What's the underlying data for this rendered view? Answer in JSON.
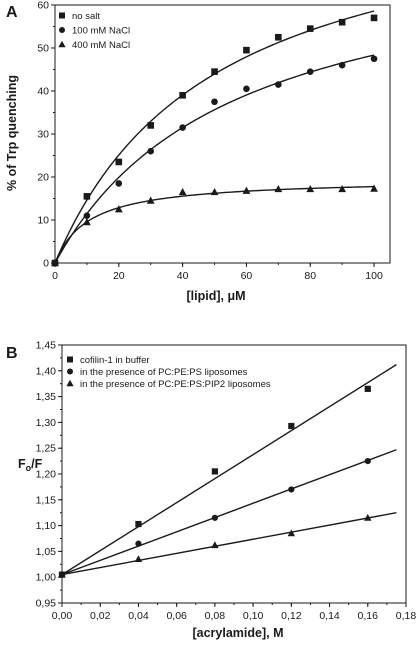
{
  "chart_data": [
    {
      "type": "scatter",
      "panel_label": "A",
      "xlabel": "[lipid], μM",
      "ylabel": "% of Trp quenching",
      "xlim": [
        0,
        105
      ],
      "ylim": [
        0,
        60
      ],
      "x_ticks": [
        "0",
        "20",
        "40",
        "60",
        "80",
        "100"
      ],
      "y_ticks": [
        "0",
        "10",
        "20",
        "30",
        "40",
        "50",
        "60"
      ],
      "legend_position": "top-left",
      "series": [
        {
          "name": "no salt",
          "marker": "square",
          "x": [
            0,
            10,
            20,
            30,
            40,
            50,
            60,
            70,
            80,
            90,
            100
          ],
          "y": [
            0,
            15.5,
            23.5,
            32,
            39,
            44.5,
            49.5,
            52.5,
            54.5,
            56,
            57
          ],
          "fit": "saturating"
        },
        {
          "name": "100 mM NaCl",
          "marker": "circle",
          "x": [
            0,
            10,
            20,
            30,
            40,
            50,
            60,
            70,
            80,
            90,
            100
          ],
          "y": [
            0,
            11,
            18.5,
            26,
            31.5,
            37.5,
            40.5,
            41.5,
            44.5,
            46,
            47.5
          ],
          "fit": "saturating"
        },
        {
          "name": "400 mM NaCl",
          "marker": "triangle",
          "x": [
            0,
            10,
            20,
            30,
            40,
            50,
            60,
            70,
            80,
            90,
            100
          ],
          "y": [
            0,
            9.5,
            12.5,
            14.5,
            16.5,
            16.5,
            16.8,
            17.2,
            17.2,
            17.2,
            17.3
          ],
          "fit": "saturating"
        }
      ]
    },
    {
      "type": "scatter",
      "panel_label": "B",
      "xlabel": "[acrylamide], M",
      "ylabel": "F₀/F",
      "xlim": [
        0,
        0.18
      ],
      "ylim": [
        0.95,
        1.45
      ],
      "x_ticks": [
        "0,00",
        "0,02",
        "0,04",
        "0,06",
        "0,08",
        "0,10",
        "0,12",
        "0,14",
        "0,16",
        "0,18"
      ],
      "y_ticks": [
        "0,95",
        "1,00",
        "1,05",
        "1,10",
        "1,15",
        "1,20",
        "1,25",
        "1,30",
        "1,35",
        "1,40",
        "1,45"
      ],
      "legend_position": "top-left",
      "series": [
        {
          "name": "cofilin-1 in buffer",
          "marker": "square",
          "x": [
            0,
            0.04,
            0.08,
            0.12,
            0.16
          ],
          "y": [
            1.005,
            1.103,
            1.205,
            1.293,
            1.365
          ],
          "fit": "linear",
          "fit_range": [
            0,
            0.175
          ],
          "fit_y": [
            1.005,
            1.412
          ]
        },
        {
          "name": "in the presence of PC:PE:PS liposomes",
          "marker": "circle",
          "x": [
            0,
            0.04,
            0.08,
            0.12,
            0.16
          ],
          "y": [
            1.005,
            1.065,
            1.115,
            1.17,
            1.225
          ],
          "fit": "linear",
          "fit_range": [
            0,
            0.175
          ],
          "fit_y": [
            1.005,
            1.247
          ]
        },
        {
          "name": "in the presence of PC:PE:PS:PIP2 liposomes",
          "marker": "triangle",
          "x": [
            0,
            0.04,
            0.08,
            0.12,
            0.16
          ],
          "y": [
            1.005,
            1.035,
            1.062,
            1.085,
            1.115
          ],
          "fit": "linear",
          "fit_range": [
            0,
            0.175
          ],
          "fit_y": [
            1.005,
            1.125
          ]
        }
      ]
    }
  ]
}
